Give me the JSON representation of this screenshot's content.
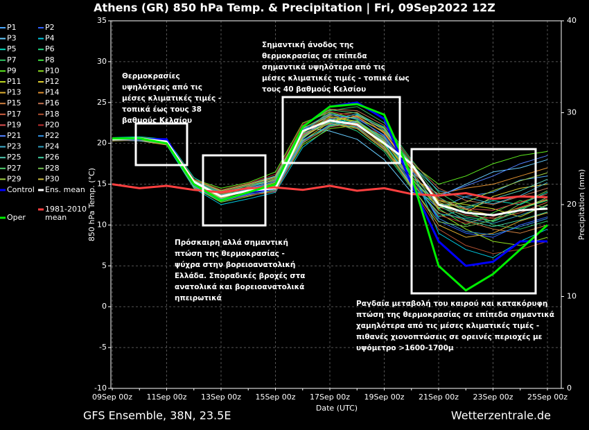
{
  "chart_data": {
    "type": "line",
    "title": "Athens  (GR)  850 hPa Temp. & Precipitation | Fri, 09Sep2022 12Z",
    "ylabel": "850 hPa Temp. (°C)",
    "y2label": "Precipitation (mm)",
    "xlabel": "Date (UTC)",
    "footer_left": "GFS Ensemble, 38N, 23.5E",
    "footer_right": "Wetterzentrale.de",
    "categories": [
      "09Sep 00z",
      null,
      "11Sep 00z",
      null,
      "13Sep 00z",
      null,
      "15Sep 00z",
      null,
      "17Sep 00z",
      null,
      "19Sep 00z",
      null,
      "21Sep 00z",
      null,
      "23Sep 00z",
      null,
      "25Sep 00z"
    ],
    "ylim": [
      -10,
      35
    ],
    "yticks": [
      -10,
      -5,
      0,
      5,
      10,
      15,
      20,
      25,
      30,
      35
    ],
    "y2lim": [
      0,
      40
    ],
    "y2ticks": [
      0,
      10,
      20,
      30,
      40
    ],
    "grid": true,
    "annotations": [
      "Θερμοκρασίες υψηλότερες από τις μέσες κλιματικές τιμές - τοπικά έως τους 38 βαθμούς Κελσίου",
      "Σημαντική άνοδος της θερμοκρασίας σε επίπεδα σημαντικά υψηλότερα από τις μέσες κλιματικές τιμές - τοπικά έως τους 40 βαθμούς Κελσίου",
      "Πρόσκαιρη αλλά σημαντική πτώση της θερμοκρασίας - ψύχρα στην βορειοανατολική Ελλάδα. Σποραδικές βροχές στα ανατολικά και βορειοανατολικά ηπειρωτικά",
      "Ραγδαία μεταβολή του καιρού και κατακόρυφη πτώση της θερμοκρασίας σε επίπεδα σημαντικά χαμηλότερα από τις μέσες κλιματικές τιμές - πιθανές χιονοπτώσεις σε ορεινές περιοχές με υψόμετρο >1600-1700μ"
    ],
    "series": [
      {
        "name": "P1",
        "color": "#4aa8ff",
        "values": [
          20.5,
          20.4,
          20.1,
          15.2,
          13.8,
          14.5,
          15.3,
          21.0,
          22.5,
          22.0,
          19.5,
          15.0,
          12.0,
          13.5,
          14.0,
          15.5,
          16.0
        ]
      },
      {
        "name": "P2",
        "color": "#3060ff",
        "values": [
          20.4,
          20.7,
          20.3,
          14.8,
          13.0,
          13.8,
          14.2,
          20.5,
          23.5,
          23.0,
          21.0,
          16.5,
          10.5,
          9.0,
          8.5,
          10.0,
          11.0
        ]
      },
      {
        "name": "P3",
        "color": "#66ccff",
        "values": [
          20.6,
          20.5,
          20.0,
          15.5,
          14.2,
          15.0,
          16.0,
          22.0,
          21.5,
          20.5,
          18.0,
          14.0,
          13.5,
          15.0,
          16.5,
          17.0,
          18.0
        ]
      },
      {
        "name": "P4",
        "color": "#00c8e0",
        "values": [
          20.3,
          20.6,
          19.8,
          14.5,
          12.5,
          13.2,
          14.0,
          19.5,
          22.0,
          23.5,
          22.0,
          17.0,
          9.0,
          7.0,
          6.0,
          8.0,
          9.5
        ]
      },
      {
        "name": "P5",
        "color": "#00e0c0",
        "values": [
          20.7,
          20.8,
          20.5,
          15.8,
          14.0,
          14.8,
          15.5,
          21.5,
          23.0,
          22.5,
          20.0,
          15.5,
          11.0,
          12.0,
          13.0,
          12.5,
          14.0
        ]
      },
      {
        "name": "P6",
        "color": "#20d880",
        "values": [
          20.5,
          20.3,
          19.9,
          14.9,
          13.5,
          14.1,
          14.8,
          20.8,
          22.8,
          21.5,
          19.0,
          14.5,
          12.5,
          11.0,
          10.5,
          12.0,
          13.0
        ]
      },
      {
        "name": "P7",
        "color": "#30c060",
        "values": [
          20.4,
          20.5,
          20.2,
          15.1,
          13.2,
          14.4,
          15.0,
          21.2,
          24.0,
          24.5,
          22.5,
          18.0,
          14.0,
          12.0,
          10.0,
          9.5,
          10.5
        ]
      },
      {
        "name": "P8",
        "color": "#40e040",
        "values": [
          20.6,
          20.4,
          20.1,
          15.3,
          13.9,
          14.0,
          14.6,
          20.0,
          22.2,
          22.8,
          20.5,
          16.0,
          12.0,
          10.0,
          11.5,
          13.0,
          12.0
        ]
      },
      {
        "name": "P9",
        "color": "#60f020",
        "values": [
          20.5,
          20.6,
          20.4,
          15.6,
          14.5,
          15.2,
          16.5,
          22.5,
          23.8,
          23.0,
          21.5,
          17.5,
          15.0,
          16.0,
          17.5,
          18.5,
          19.0
        ]
      },
      {
        "name": "P10",
        "color": "#90e020",
        "values": [
          20.3,
          20.4,
          20.0,
          14.6,
          12.8,
          13.5,
          14.3,
          19.8,
          21.8,
          22.2,
          19.8,
          15.2,
          11.5,
          9.5,
          8.0,
          7.5,
          8.5
        ]
      },
      {
        "name": "P11",
        "color": "#c0d820",
        "values": [
          20.6,
          20.7,
          20.3,
          15.4,
          13.6,
          14.3,
          15.2,
          21.3,
          23.2,
          22.6,
          20.2,
          16.2,
          13.0,
          12.5,
          12.0,
          11.0,
          12.5
        ]
      },
      {
        "name": "P12",
        "color": "#e0d030",
        "values": [
          20.5,
          20.5,
          20.0,
          14.7,
          13.1,
          13.9,
          14.6,
          20.3,
          22.6,
          23.4,
          21.8,
          17.2,
          12.8,
          11.5,
          13.5,
          14.5,
          15.0
        ]
      },
      {
        "name": "P13",
        "color": "#e0b030",
        "values": [
          20.4,
          20.3,
          19.8,
          15.0,
          13.7,
          14.6,
          15.6,
          21.8,
          23.6,
          22.4,
          19.6,
          14.8,
          10.0,
          8.5,
          9.0,
          10.5,
          11.5
        ]
      },
      {
        "name": "P14",
        "color": "#e09030",
        "values": [
          20.6,
          20.6,
          20.2,
          15.2,
          13.3,
          14.2,
          15.1,
          21.1,
          22.4,
          21.8,
          19.2,
          15.8,
          13.8,
          14.5,
          15.0,
          16.0,
          17.0
        ]
      },
      {
        "name": "P15",
        "color": "#d08040",
        "values": [
          20.5,
          20.4,
          20.1,
          14.8,
          13.4,
          14.7,
          15.4,
          21.4,
          23.4,
          23.8,
          21.2,
          16.8,
          11.8,
          10.5,
          9.5,
          9.0,
          10.0
        ]
      },
      {
        "name": "P16",
        "color": "#c07050",
        "values": [
          20.7,
          20.5,
          20.3,
          15.5,
          14.1,
          14.9,
          15.8,
          22.2,
          24.2,
          24.0,
          22.2,
          17.8,
          14.5,
          13.0,
          12.5,
          13.5,
          14.5
        ]
      },
      {
        "name": "P17",
        "color": "#d06040",
        "values": [
          20.4,
          20.6,
          20.0,
          15.1,
          13.0,
          13.6,
          14.1,
          20.1,
          22.0,
          22.5,
          20.8,
          16.4,
          12.2,
          11.2,
          10.8,
          11.5,
          12.8
        ]
      },
      {
        "name": "P18",
        "color": "#b05030",
        "values": [
          20.5,
          20.5,
          20.2,
          14.9,
          13.8,
          14.5,
          15.0,
          20.7,
          22.7,
          22.1,
          19.4,
          14.6,
          9.5,
          7.5,
          6.5,
          7.0,
          8.0
        ]
      },
      {
        "name": "P19",
        "color": "#e05050",
        "values": [
          20.6,
          20.4,
          19.9,
          15.3,
          13.5,
          14.2,
          14.9,
          21.0,
          23.1,
          23.2,
          21.4,
          17.0,
          13.2,
          12.0,
          11.8,
          12.8,
          13.8
        ]
      },
      {
        "name": "P20",
        "color": "#c03030",
        "values": [
          20.5,
          20.7,
          20.4,
          15.6,
          14.3,
          15.1,
          16.2,
          22.4,
          23.9,
          23.3,
          20.6,
          15.4,
          11.2,
          10.2,
          11.0,
          12.2,
          13.2
        ]
      },
      {
        "name": "P21",
        "color": "#5080ff",
        "values": [
          20.3,
          20.5,
          20.1,
          14.7,
          12.9,
          13.7,
          14.4,
          20.2,
          22.3,
          22.7,
          20.4,
          16.6,
          13.6,
          14.8,
          16.0,
          17.5,
          18.5
        ]
      },
      {
        "name": "P22",
        "color": "#3090e0",
        "values": [
          20.6,
          20.6,
          20.2,
          15.2,
          13.6,
          14.4,
          15.3,
          21.6,
          23.5,
          23.1,
          20.9,
          15.9,
          10.8,
          9.2,
          8.8,
          9.8,
          10.8
        ]
      },
      {
        "name": "P23",
        "color": "#40b0d0",
        "values": [
          20.4,
          20.3,
          20.0,
          15.0,
          13.2,
          14.0,
          14.7,
          20.6,
          22.9,
          23.6,
          21.6,
          17.4,
          14.2,
          13.4,
          12.6,
          13.6,
          15.2
        ]
      },
      {
        "name": "P24",
        "color": "#30a0c0",
        "values": [
          20.5,
          20.5,
          20.3,
          15.4,
          14.0,
          14.6,
          15.5,
          21.7,
          23.7,
          22.9,
          20.1,
          15.1,
          11.4,
          10.8,
          10.2,
          11.2,
          12.4
        ]
      },
      {
        "name": "P25",
        "color": "#50c8b0",
        "values": [
          20.6,
          20.4,
          20.1,
          15.1,
          13.7,
          14.3,
          15.0,
          21.2,
          22.6,
          22.3,
          19.9,
          15.6,
          12.6,
          12.2,
          13.2,
          14.2,
          15.6
        ]
      },
      {
        "name": "P26",
        "color": "#40d0a0",
        "values": [
          20.5,
          20.6,
          20.2,
          14.8,
          13.1,
          13.9,
          14.5,
          20.4,
          22.1,
          22.6,
          20.7,
          16.3,
          12.4,
          10.6,
          9.8,
          10.6,
          11.6
        ]
      },
      {
        "name": "P27",
        "color": "#50d070",
        "values": [
          20.4,
          20.5,
          19.9,
          15.3,
          13.9,
          14.8,
          15.7,
          22.1,
          24.1,
          23.7,
          21.9,
          17.6,
          13.4,
          11.6,
          10.4,
          11.8,
          13.4
        ]
      },
      {
        "name": "P28",
        "color": "#70c050",
        "values": [
          20.5,
          20.4,
          20.1,
          15.0,
          13.4,
          14.1,
          14.8,
          20.9,
          22.5,
          21.9,
          19.3,
          14.7,
          10.4,
          9.8,
          10.6,
          12.6,
          14.2
        ]
      },
      {
        "name": "P29",
        "color": "#a0d040",
        "values": [
          20.6,
          20.7,
          20.3,
          15.5,
          14.2,
          15.0,
          15.9,
          21.9,
          23.3,
          22.7,
          20.3,
          15.7,
          12.1,
          12.8,
          14.2,
          15.4,
          16.4
        ]
      },
      {
        "name": "P30",
        "color": "#d0c040",
        "values": [
          20.3,
          20.4,
          20.0,
          14.9,
          13.3,
          14.2,
          14.9,
          20.7,
          22.8,
          23.3,
          21.3,
          16.9,
          13.0,
          11.9,
          11.2,
          12.1,
          13.1
        ]
      },
      {
        "name": "Control",
        "color": "#0000ff",
        "width": 3,
        "values": [
          20.5,
          20.5,
          20.5,
          15.0,
          13.0,
          14.0,
          14.5,
          22.0,
          24.5,
          25.0,
          23.0,
          15.0,
          8.0,
          5.0,
          5.5,
          8.0,
          8.0
        ]
      },
      {
        "name": "Ens. mean",
        "color": "#ffffff",
        "width": 3,
        "values": [
          20.5,
          20.6,
          20.2,
          15.3,
          13.5,
          14.2,
          14.5,
          21.5,
          22.8,
          22.3,
          20.0,
          17.5,
          12.5,
          11.5,
          11.2,
          11.8,
          12.0
        ]
      },
      {
        "name": "1981-2010 mean",
        "color": "#ff4040",
        "width": 3,
        "values": [
          15.0,
          14.5,
          14.8,
          14.3,
          14.0,
          14.5,
          14.6,
          14.3,
          14.8,
          14.2,
          14.5,
          13.8,
          13.6,
          13.9,
          13.2,
          13.5,
          13.4
        ]
      },
      {
        "name": "Oper",
        "color": "#00ee00",
        "width": 3,
        "values": [
          20.6,
          20.6,
          20.0,
          15.0,
          13.0,
          14.0,
          15.0,
          22.0,
          24.5,
          24.8,
          23.5,
          16.0,
          5.0,
          2.0,
          4.0,
          7.0,
          10.0
        ]
      }
    ]
  }
}
